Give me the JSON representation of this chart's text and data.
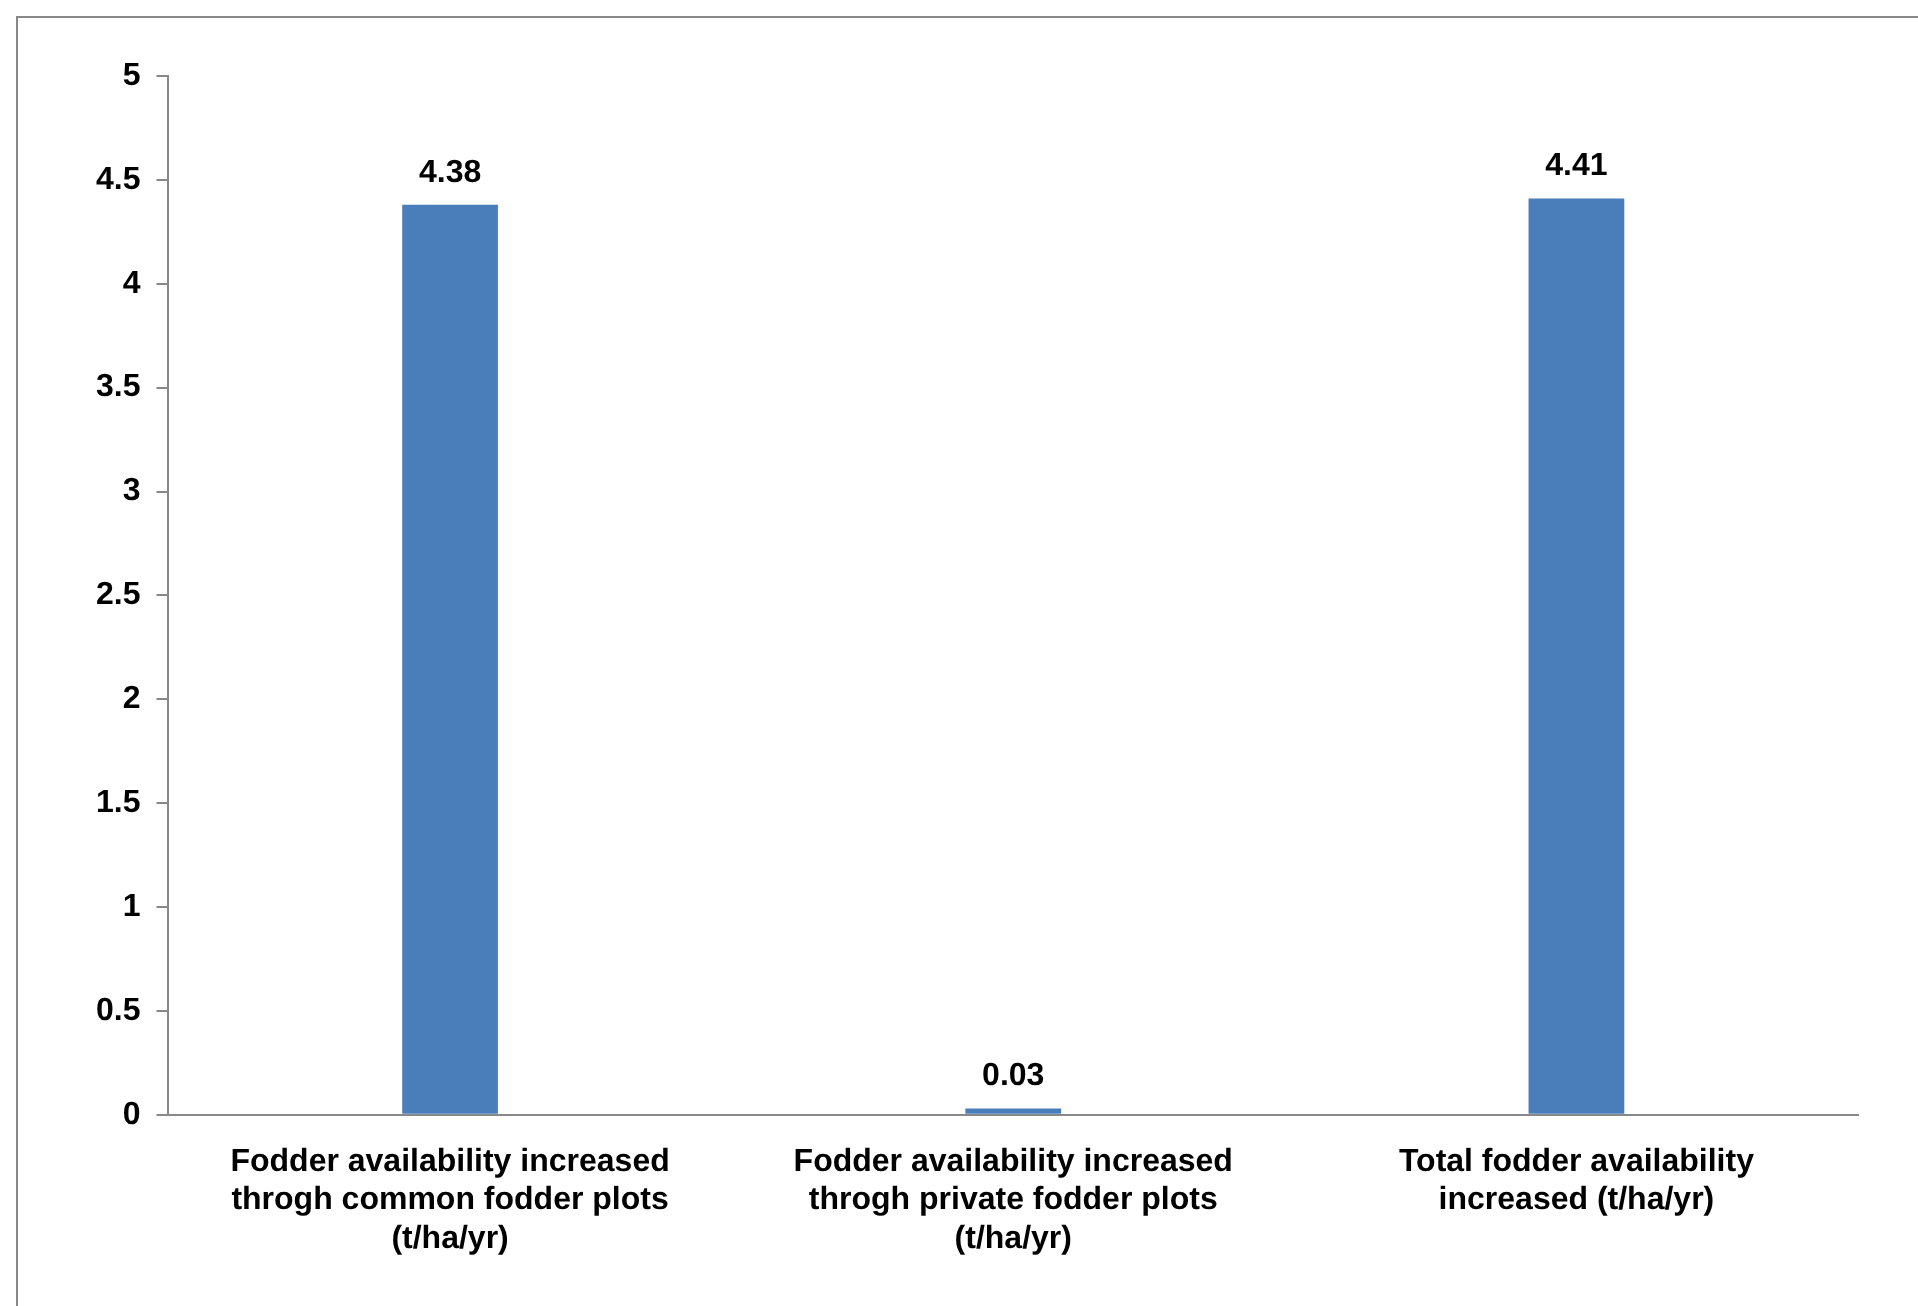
{
  "chart_data": {
    "type": "bar",
    "categories": [
      "Fodder availability increased throgh common fodder plots (t/ha/yr)",
      "Fodder availability increased throgh private fodder plots (t/ha/yr)",
      "Total fodder availability increased (t/ha/yr)"
    ],
    "values": [
      4.38,
      0.03,
      4.41
    ],
    "color": "#4a7ebb",
    "ylim": [
      0,
      5
    ],
    "yticks": [
      0,
      0.5,
      1,
      1.5,
      2,
      2.5,
      3,
      3.5,
      4,
      4.5,
      5
    ],
    "grid": false,
    "data_labels": true,
    "legend": false
  }
}
